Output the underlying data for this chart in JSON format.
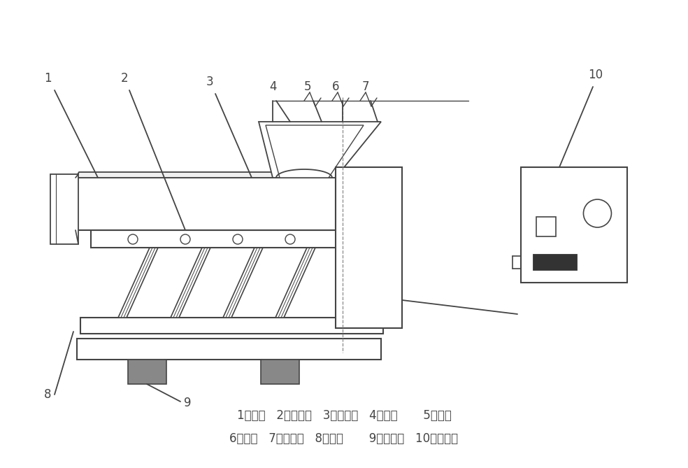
{
  "bg_color": "#ffffff",
  "line_color": "#444444",
  "label_color": "#444444",
  "legend_line1": "1、槽体   2、弹簧板   3、连接叉   4、铁芯       5、线圈",
  "legend_line2": "6、袄铁   7、封闭罩   8、底座       9、减震器   10、控制器"
}
